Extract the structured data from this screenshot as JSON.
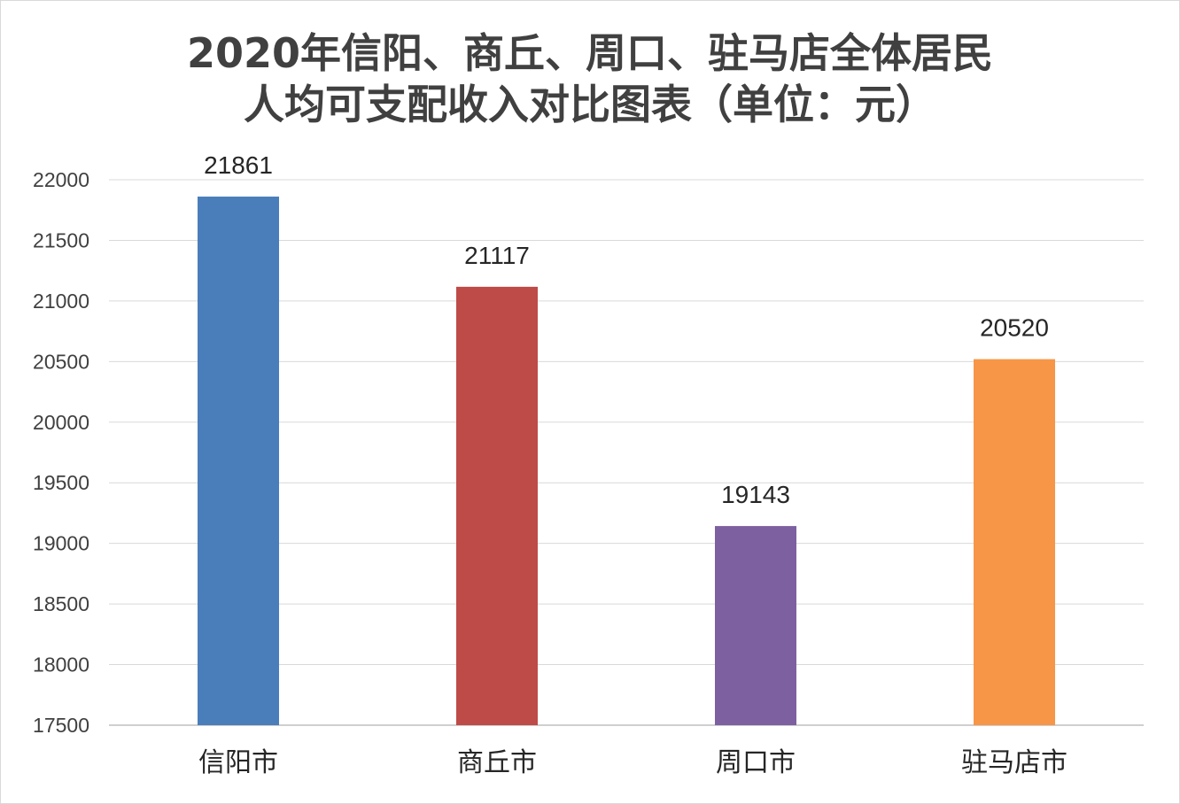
{
  "chart_data": {
    "type": "bar",
    "title_lines": [
      "2020年信阳、商丘、周口、驻马店全体居民",
      "人均可支配收入对比图表（单位：元）"
    ],
    "categories": [
      "信阳市",
      "商丘市",
      "周口市",
      "驻马店市"
    ],
    "values": [
      21861,
      21117,
      19143,
      20520
    ],
    "data_labels": [
      "21861",
      "21117",
      "19143",
      "20520"
    ],
    "colors": [
      "#4a7ebb",
      "#be4b48",
      "#7d60a0",
      "#f79646"
    ],
    "ylim": [
      17500,
      22000
    ],
    "yticks": [
      17500,
      18000,
      18500,
      19000,
      19500,
      20000,
      20500,
      21000,
      21500,
      22000
    ],
    "grid": true,
    "legend": "none"
  }
}
